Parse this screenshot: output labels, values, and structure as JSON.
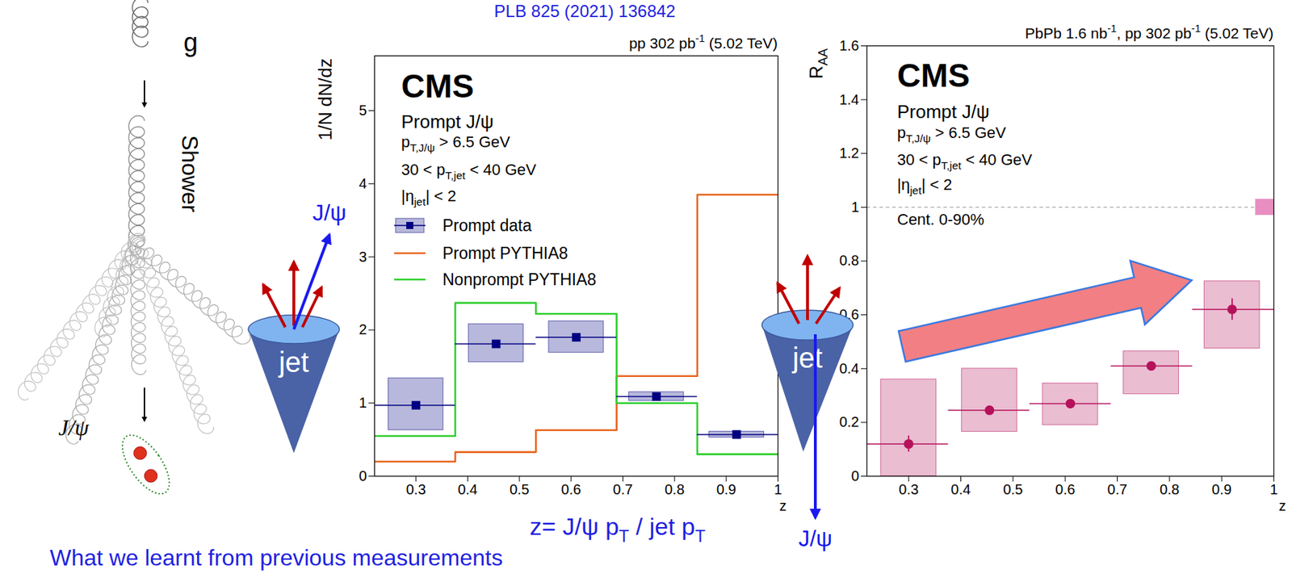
{
  "slide": {
    "reference": "PLB 825 (2021) 136842",
    "gluon": "g",
    "shower": "Shower",
    "jpsi": "J/ψ",
    "jet": "jet",
    "z_definition": [
      {
        "t": "z= J/ψ p"
      },
      {
        "t": "T",
        "sub": true
      },
      {
        "t": " / jet p"
      },
      {
        "t": "T",
        "sub": true
      }
    ],
    "footer": "What we learnt from previous measurements"
  },
  "chart_data": [
    {
      "type": "histogram",
      "header": [
        {
          "t": "pp 302 pb"
        },
        {
          "t": "-1",
          "sup": true
        },
        {
          "t": " (5.02 TeV)"
        }
      ],
      "x_label": "z",
      "y_label": [
        {
          "t": "1/N dN/dz"
        }
      ],
      "xlim": [
        0.22,
        1
      ],
      "ylim": [
        0,
        5.75
      ],
      "xticks": [
        0.3,
        0.4,
        0.5,
        0.6,
        0.7,
        0.8,
        0.9,
        1
      ],
      "yticks": [
        0,
        1,
        2,
        3,
        4,
        5
      ],
      "bins": [
        0.22,
        0.376,
        0.532,
        0.688,
        0.844,
        1.0
      ],
      "text": {
        "experiment": "CMS",
        "lines": [
          [
            {
              "t": "Prompt J/ψ"
            }
          ],
          [
            {
              "t": "p"
            },
            {
              "t": "T,J/ψ",
              "sub": true
            },
            {
              "t": " > 6.5 GeV"
            }
          ],
          [
            {
              "t": "30 < p"
            },
            {
              "t": "T,jet",
              "sub": true
            },
            {
              "t": " < 40 GeV"
            }
          ],
          [
            {
              "t": "|η"
            },
            {
              "t": "jet",
              "sub": true
            },
            {
              "t": "| < 2"
            }
          ]
        ]
      },
      "legend": "top-left",
      "series": [
        {
          "name": "Prompt data",
          "type": "points",
          "marker": "square",
          "color": "#000080",
          "x": [
            0.3,
            0.455,
            0.61,
            0.765,
            0.92
          ],
          "values": [
            0.97,
            1.81,
            1.9,
            1.09,
            0.57
          ],
          "stat_errors": [
            0.03,
            0.03,
            0.03,
            0.02,
            0.01
          ],
          "syst_low": [
            0.63,
            1.56,
            1.69,
            1.03,
            0.53
          ],
          "syst_high": [
            1.34,
            2.08,
            2.12,
            1.15,
            0.61
          ]
        },
        {
          "name": "Prompt PYTHIA8",
          "type": "step",
          "color": "#e8661e",
          "values": [
            0.2,
            0.33,
            0.63,
            1.37,
            3.85
          ]
        },
        {
          "name": "Nonprompt PYTHIA8",
          "type": "step",
          "color": "#2fcf2f",
          "values": [
            0.55,
            2.37,
            2.22,
            1.0,
            0.3
          ]
        }
      ]
    },
    {
      "type": "scatter",
      "header": [
        {
          "t": "PbPb 1.6 nb"
        },
        {
          "t": "-1",
          "sup": true
        },
        {
          "t": ", pp 302 pb"
        },
        {
          "t": "-1",
          "sup": true
        },
        {
          "t": " (5.02 TeV)"
        }
      ],
      "x_label": "z",
      "y_label": [
        {
          "t": "R"
        },
        {
          "t": "AA",
          "sub": true
        }
      ],
      "xlim": [
        0.22,
        1
      ],
      "ylim": [
        0,
        1.6
      ],
      "xticks": [
        0.3,
        0.4,
        0.5,
        0.6,
        0.7,
        0.8,
        0.9,
        1
      ],
      "yticks": [
        0,
        0.2,
        0.4,
        0.6,
        0.8,
        1,
        1.2,
        1.4,
        1.6
      ],
      "bins": [
        0.22,
        0.376,
        0.532,
        0.688,
        0.844,
        1.0
      ],
      "reference_line": 1,
      "global_uncertainty": 0.03,
      "text": {
        "experiment": "CMS",
        "lines": [
          [
            {
              "t": "Prompt J/ψ"
            }
          ],
          [
            {
              "t": "p"
            },
            {
              "t": "T,J/ψ",
              "sub": true
            },
            {
              "t": " > 6.5 GeV"
            }
          ],
          [
            {
              "t": "30 < p"
            },
            {
              "t": "T,jet",
              "sub": true
            },
            {
              "t": " < 40 GeV"
            }
          ],
          [
            {
              "t": "|η"
            },
            {
              "t": "jet",
              "sub": true
            },
            {
              "t": "| < 2"
            }
          ],
          [
            {
              "t": "Cent. 0-90%"
            }
          ]
        ]
      },
      "series": [
        {
          "type": "points",
          "marker": "circle",
          "color": "#b5125b",
          "x": [
            0.3,
            0.455,
            0.61,
            0.765,
            0.92
          ],
          "values": [
            0.12,
            0.245,
            0.27,
            0.41,
            0.62
          ],
          "stat_errors": [
            0.03,
            0.01,
            0.01,
            0.01,
            0.04
          ],
          "syst_low": [
            0,
            0.165,
            0.19,
            0.305,
            0.475
          ],
          "syst_high": [
            0.36,
            0.4,
            0.345,
            0.465,
            0.725
          ]
        }
      ]
    }
  ]
}
